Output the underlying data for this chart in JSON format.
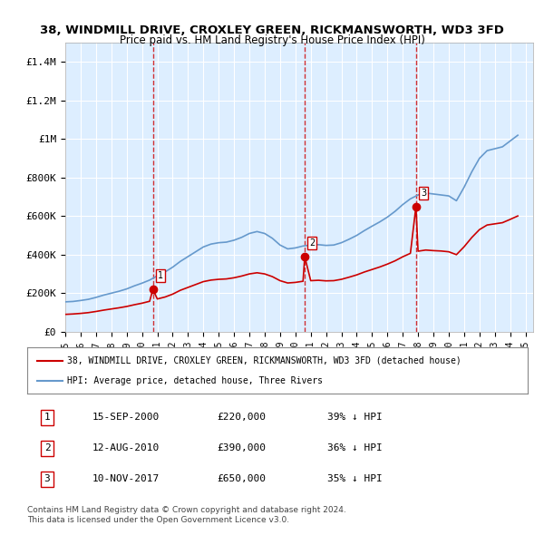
{
  "title1": "38, WINDMILL DRIVE, CROXLEY GREEN, RICKMANSWORTH, WD3 3FD",
  "title2": "Price paid vs. HM Land Registry's House Price Index (HPI)",
  "ylim": [
    0,
    1500000
  ],
  "yticks": [
    0,
    200000,
    400000,
    600000,
    800000,
    1000000,
    1200000,
    1400000
  ],
  "ytick_labels": [
    "£0",
    "£200K",
    "£400K",
    "£600K",
    "£800K",
    "£1M",
    "£1.2M",
    "£1.4M"
  ],
  "xlim_start": 1995.0,
  "xlim_end": 2025.5,
  "background_color": "#ddeeff",
  "plot_bg_color": "#ddeeff",
  "legend_line1": "38, WINDMILL DRIVE, CROXLEY GREEN, RICKMANSWORTH, WD3 3FD (detached house)",
  "legend_line2": "HPI: Average price, detached house, Three Rivers",
  "red_line_color": "#cc0000",
  "blue_line_color": "#6699cc",
  "sale_color": "#cc0000",
  "sale_marker": "o",
  "footer1": "Contains HM Land Registry data © Crown copyright and database right 2024.",
  "footer2": "This data is licensed under the Open Government Licence v3.0.",
  "sales": [
    {
      "num": 1,
      "date_x": 2000.71,
      "price": 220000,
      "label": "15-SEP-2000",
      "pct": "39% ↓ HPI"
    },
    {
      "num": 2,
      "date_x": 2010.61,
      "price": 390000,
      "label": "12-AUG-2010",
      "pct": "36% ↓ HPI"
    },
    {
      "num": 3,
      "date_x": 2017.86,
      "price": 650000,
      "label": "10-NOV-2017",
      "pct": "35% ↓ HPI"
    }
  ],
  "hpi_x": [
    1995.0,
    1995.5,
    1996.0,
    1996.5,
    1997.0,
    1997.5,
    1998.0,
    1998.5,
    1999.0,
    1999.5,
    2000.0,
    2000.5,
    2001.0,
    2001.5,
    2002.0,
    2002.5,
    2003.0,
    2003.5,
    2004.0,
    2004.5,
    2005.0,
    2005.5,
    2006.0,
    2006.5,
    2007.0,
    2007.5,
    2008.0,
    2008.5,
    2009.0,
    2009.5,
    2010.0,
    2010.5,
    2011.0,
    2011.5,
    2012.0,
    2012.5,
    2013.0,
    2013.5,
    2014.0,
    2014.5,
    2015.0,
    2015.5,
    2016.0,
    2016.5,
    2017.0,
    2017.5,
    2018.0,
    2018.5,
    2019.0,
    2019.5,
    2020.0,
    2020.5,
    2021.0,
    2021.5,
    2022.0,
    2022.5,
    2023.0,
    2023.5,
    2024.0,
    2024.5
  ],
  "hpi_y": [
    155000,
    157000,
    162000,
    168000,
    178000,
    190000,
    200000,
    210000,
    222000,
    238000,
    252000,
    268000,
    290000,
    310000,
    335000,
    365000,
    390000,
    415000,
    440000,
    455000,
    462000,
    465000,
    475000,
    490000,
    510000,
    520000,
    510000,
    485000,
    450000,
    430000,
    435000,
    445000,
    450000,
    452000,
    448000,
    450000,
    462000,
    480000,
    500000,
    525000,
    548000,
    570000,
    595000,
    625000,
    660000,
    690000,
    710000,
    720000,
    715000,
    710000,
    705000,
    680000,
    750000,
    830000,
    900000,
    940000,
    950000,
    960000,
    990000,
    1020000
  ],
  "red_x": [
    1995.0,
    1995.5,
    1996.0,
    1996.5,
    1997.0,
    1997.5,
    1998.0,
    1998.5,
    1999.0,
    1999.5,
    2000.0,
    2000.5,
    2000.71,
    2001.0,
    2001.5,
    2002.0,
    2002.5,
    2003.0,
    2003.5,
    2004.0,
    2004.5,
    2005.0,
    2005.5,
    2006.0,
    2006.5,
    2007.0,
    2007.5,
    2008.0,
    2008.5,
    2009.0,
    2009.5,
    2010.0,
    2010.5,
    2010.61,
    2011.0,
    2011.5,
    2012.0,
    2012.5,
    2013.0,
    2013.5,
    2014.0,
    2014.5,
    2015.0,
    2015.5,
    2016.0,
    2016.5,
    2017.0,
    2017.5,
    2017.86,
    2018.0,
    2018.5,
    2019.0,
    2019.5,
    2020.0,
    2020.5,
    2021.0,
    2021.5,
    2022.0,
    2022.5,
    2023.0,
    2023.5,
    2024.0,
    2024.5
  ],
  "red_y": [
    90000,
    92000,
    95000,
    99000,
    105000,
    112000,
    118000,
    124000,
    131000,
    140000,
    148000,
    158000,
    220000,
    170000,
    180000,
    195000,
    215000,
    230000,
    245000,
    260000,
    268000,
    272000,
    274000,
    280000,
    289000,
    300000,
    306000,
    300000,
    286000,
    265000,
    253000,
    256000,
    262000,
    390000,
    265000,
    267000,
    264000,
    265000,
    272000,
    283000,
    295000,
    310000,
    323000,
    336000,
    351000,
    368000,
    389000,
    407000,
    650000,
    418000,
    424000,
    421000,
    419000,
    415000,
    400000,
    441000,
    489000,
    530000,
    554000,
    560000,
    566000,
    583000,
    601000
  ]
}
